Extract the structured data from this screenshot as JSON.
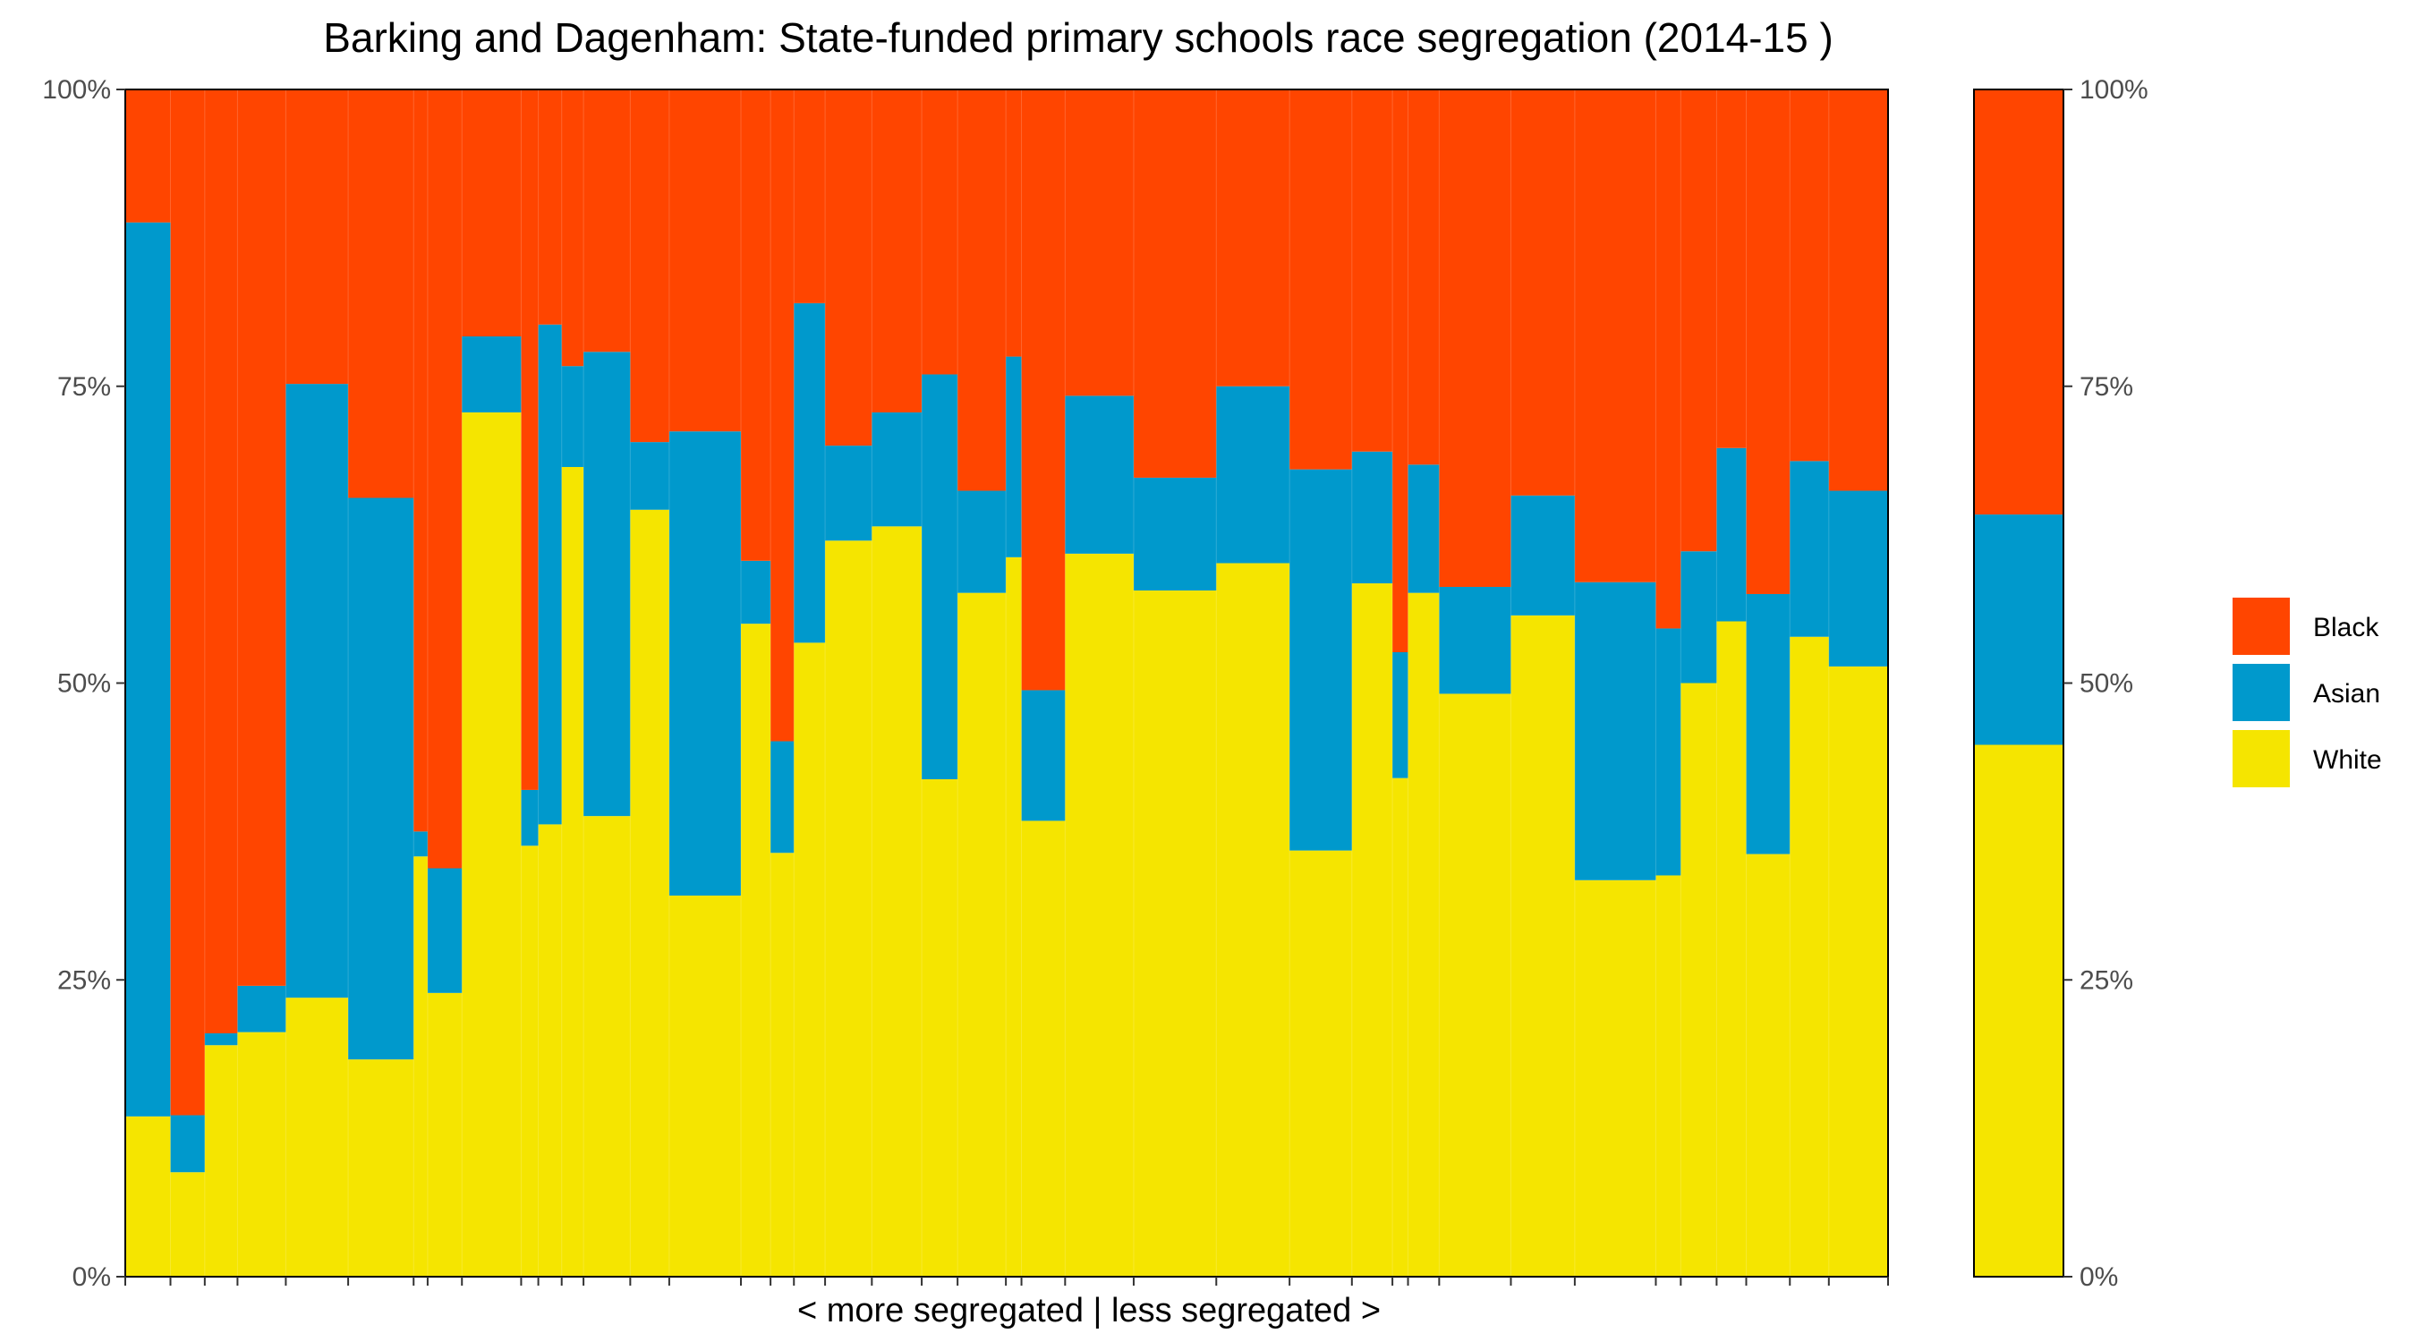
{
  "chart_data": {
    "type": "bar",
    "title": "Barking and Dagenham: State-funded primary schools race segregation (2014-15 )",
    "xlabel": "< more segregated | less segregated >",
    "ylabel": "",
    "ylim": [
      0,
      100
    ],
    "y_ticks": [
      "0%",
      "25%",
      "50%",
      "75%",
      "100%"
    ],
    "stacking": "filled, variable-width columns (width proportional to school size)",
    "colors": {
      "Black": "#FF4500",
      "Asian": "#0099CC",
      "White": "#F5E500"
    },
    "legend": {
      "placement": "right",
      "entries": [
        "Black",
        "Asian",
        "White"
      ]
    },
    "schools": [
      {
        "width": 29,
        "white": 13.5,
        "asian": 75.3,
        "black": 11.2
      },
      {
        "width": 22,
        "white": 8.8,
        "asian": 4.8,
        "black": 86.4
      },
      {
        "width": 21,
        "white": 19.5,
        "asian": 1.0,
        "black": 79.5
      },
      {
        "width": 31,
        "white": 20.6,
        "asian": 3.9,
        "black": 75.5
      },
      {
        "width": 40,
        "white": 23.5,
        "asian": 51.7,
        "black": 24.8
      },
      {
        "width": 42,
        "white": 18.3,
        "asian": 47.3,
        "black": 34.4
      },
      {
        "width": 9,
        "white": 35.4,
        "asian": 2.1,
        "black": 62.5
      },
      {
        "width": 22,
        "white": 23.9,
        "asian": 10.5,
        "black": 65.6
      },
      {
        "width": 38,
        "white": 72.8,
        "asian": 6.4,
        "black": 20.8
      },
      {
        "width": 11,
        "white": 36.3,
        "asian": 4.7,
        "black": 59.0
      },
      {
        "width": 15,
        "white": 38.1,
        "asian": 42.1,
        "black": 19.8
      },
      {
        "width": 14,
        "white": 68.2,
        "asian": 8.5,
        "black": 23.3
      },
      {
        "width": 30,
        "white": 38.8,
        "asian": 39.1,
        "black": 22.1
      },
      {
        "width": 25,
        "white": 64.6,
        "asian": 5.7,
        "black": 29.7
      },
      {
        "width": 46,
        "white": 32.1,
        "asian": 39.1,
        "black": 28.8
      },
      {
        "width": 19,
        "white": 55.0,
        "asian": 5.3,
        "black": 39.7
      },
      {
        "width": 15,
        "white": 35.7,
        "asian": 9.4,
        "black": 54.9
      },
      {
        "width": 20,
        "white": 53.4,
        "asian": 28.6,
        "black": 18.0
      },
      {
        "width": 30,
        "white": 62.0,
        "asian": 8.0,
        "black": 30.0
      },
      {
        "width": 32,
        "white": 63.2,
        "asian": 9.6,
        "black": 27.2
      },
      {
        "width": 23,
        "white": 41.9,
        "asian": 34.1,
        "black": 24.0
      },
      {
        "width": 31,
        "white": 57.6,
        "asian": 8.6,
        "black": 33.8
      },
      {
        "width": 10,
        "white": 60.6,
        "asian": 16.9,
        "black": 22.5
      },
      {
        "width": 28,
        "white": 38.4,
        "asian": 11.0,
        "black": 50.6
      },
      {
        "width": 44,
        "white": 60.9,
        "asian": 13.3,
        "black": 25.8
      },
      {
        "width": 53,
        "white": 57.8,
        "asian": 9.5,
        "black": 32.7
      },
      {
        "width": 47,
        "white": 60.1,
        "asian": 14.9,
        "black": 25.0
      },
      {
        "width": 40,
        "white": 35.9,
        "asian": 32.1,
        "black": 32.0
      },
      {
        "width": 26,
        "white": 58.4,
        "asian": 11.1,
        "black": 30.5
      },
      {
        "width": 10,
        "white": 42.0,
        "asian": 10.6,
        "black": 47.4
      },
      {
        "width": 20,
        "white": 57.6,
        "asian": 10.8,
        "black": 31.6
      },
      {
        "width": 46,
        "white": 49.1,
        "asian": 9.0,
        "black": 41.9
      },
      {
        "width": 41,
        "white": 55.7,
        "asian": 10.1,
        "black": 34.2
      },
      {
        "width": 52,
        "white": 33.4,
        "asian": 25.1,
        "black": 41.5
      },
      {
        "width": 16,
        "white": 33.8,
        "asian": 20.8,
        "black": 45.4
      },
      {
        "width": 23,
        "white": 50.0,
        "asian": 11.1,
        "black": 38.9
      },
      {
        "width": 19,
        "white": 55.2,
        "asian": 14.6,
        "black": 30.2
      },
      {
        "width": 28,
        "white": 35.6,
        "asian": 21.9,
        "black": 42.5
      },
      {
        "width": 25,
        "white": 53.9,
        "asian": 14.8,
        "black": 31.3
      },
      {
        "width": 38,
        "white": 51.4,
        "asian": 14.8,
        "black": 33.8
      }
    ],
    "overall": {
      "white": 44.8,
      "asian": 19.4,
      "black": 35.8
    }
  }
}
